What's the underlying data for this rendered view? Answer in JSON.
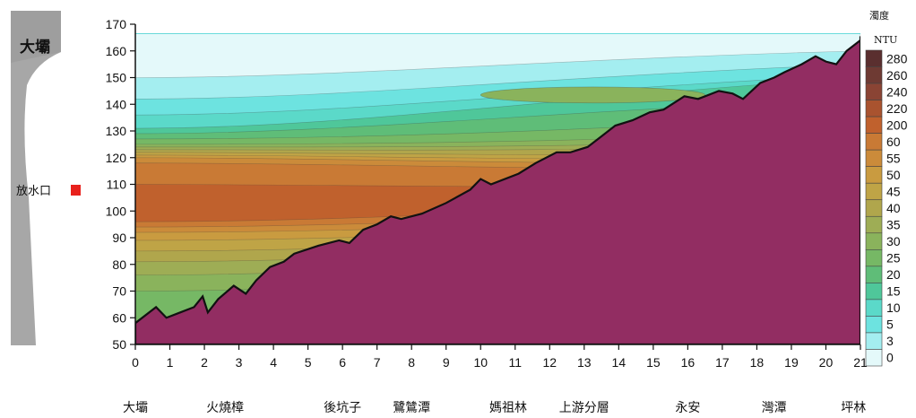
{
  "chart_data": {
    "type": "area",
    "title": "",
    "xlabel": "",
    "ylabel": "",
    "xlim": [
      0,
      21
    ],
    "ylim": [
      50,
      170
    ],
    "x_ticks": [
      "0",
      "1",
      "2",
      "3",
      "4",
      "5",
      "6",
      "7",
      "8",
      "9",
      "10",
      "11",
      "12",
      "13",
      "14",
      "15",
      "16",
      "17",
      "18",
      "19",
      "20",
      "21"
    ],
    "y_ticks": [
      "50",
      "60",
      "70",
      "80",
      "90",
      "100",
      "110",
      "120",
      "130",
      "140",
      "150",
      "160",
      "170"
    ],
    "locations": [
      {
        "name": "大壩",
        "x": 0.0
      },
      {
        "name": "火燒樟",
        "x": 2.6
      },
      {
        "name": "後坑子",
        "x": 6.0
      },
      {
        "name": "鷺鷥潭",
        "x": 8.0
      },
      {
        "name": "媽祖林",
        "x": 10.8
      },
      {
        "name": "上游分層",
        "x": 13.0
      },
      {
        "name": "永安",
        "x": 16.0
      },
      {
        "name": "灣潭",
        "x": 18.5
      },
      {
        "name": "坪林",
        "x": 20.8
      }
    ],
    "riverbed_profile": [
      [
        0,
        58
      ],
      [
        0.6,
        64
      ],
      [
        0.9,
        60
      ],
      [
        1.3,
        62
      ],
      [
        1.7,
        64
      ],
      [
        1.95,
        68
      ],
      [
        2.1,
        62
      ],
      [
        2.4,
        67
      ],
      [
        2.85,
        72
      ],
      [
        3.2,
        69
      ],
      [
        3.5,
        74
      ],
      [
        3.9,
        79
      ],
      [
        4.3,
        81
      ],
      [
        4.6,
        84
      ],
      [
        5.3,
        87
      ],
      [
        5.9,
        89
      ],
      [
        6.2,
        88
      ],
      [
        6.6,
        93
      ],
      [
        7.0,
        95
      ],
      [
        7.4,
        98
      ],
      [
        7.7,
        97
      ],
      [
        8.3,
        99
      ],
      [
        9.0,
        103
      ],
      [
        9.7,
        108
      ],
      [
        10.0,
        112
      ],
      [
        10.3,
        110
      ],
      [
        11.1,
        114
      ],
      [
        11.6,
        118
      ],
      [
        12.2,
        122
      ],
      [
        12.6,
        122
      ],
      [
        13.1,
        124
      ],
      [
        13.5,
        128
      ],
      [
        13.9,
        132
      ],
      [
        14.4,
        134
      ],
      [
        14.9,
        137
      ],
      [
        15.3,
        138
      ],
      [
        15.9,
        143
      ],
      [
        16.3,
        142
      ],
      [
        16.9,
        145
      ],
      [
        17.3,
        144
      ],
      [
        17.6,
        142
      ],
      [
        18.1,
        148
      ],
      [
        18.5,
        150
      ],
      [
        18.8,
        152
      ],
      [
        19.3,
        155
      ],
      [
        19.7,
        158
      ],
      [
        20.0,
        156
      ],
      [
        20.3,
        155
      ],
      [
        20.6,
        160
      ],
      [
        21.0,
        164
      ],
      [
        21.0,
        165.5
      ]
    ],
    "water_surface_elevation": 166.5,
    "turbidity_bands": [
      {
        "from_level": 0,
        "to_level": 3,
        "top_x0": 166.5,
        "top_x21": 166.5
      },
      {
        "from_level": 3,
        "to_level": 5,
        "top_x0": 150,
        "top_x21": 160
      },
      {
        "from_level": 5,
        "to_level": 10,
        "top_x0": 142,
        "top_x21": 155
      },
      {
        "from_level": 10,
        "to_level": 15,
        "top_x0": 136,
        "top_x21": 151
      },
      {
        "from_level": 15,
        "to_level": 20,
        "top_x0": 131,
        "top_x21": 150
      },
      {
        "from_level": 20,
        "to_level": 25,
        "top_x0": 129,
        "top_x21": 142
      },
      {
        "from_level": 25,
        "to_level": 30,
        "top_x0": 127,
        "top_x21": 136
      },
      {
        "from_level": 30,
        "to_level": 35,
        "top_x0": 125,
        "top_x21": 130
      },
      {
        "from_level": 35,
        "to_level": 40,
        "top_x0": 124,
        "top_x21": 127
      },
      {
        "from_level": 40,
        "to_level": 45,
        "top_x0": 123,
        "top_x21": 125
      },
      {
        "from_level": 45,
        "to_level": 50,
        "top_x0": 122,
        "top_x21": 122
      },
      {
        "from_level": 50,
        "to_level": 55,
        "top_x0": 121,
        "top_x21": 120
      },
      {
        "from_level": 55,
        "to_level": 60,
        "top_x0": 120,
        "top_x21": 118
      },
      {
        "from_level": 60,
        "to_level": 200,
        "top_x0": 118,
        "top_x21": 116
      },
      {
        "from_level": 200,
        "to_level": 220,
        "top_x0": 110,
        "top_x21": 110
      },
      {
        "from_level": 60,
        "to_level": 200,
        "top_x0": 96,
        "top_x21": 108
      },
      {
        "from_level": 55,
        "to_level": 60,
        "top_x0": 94,
        "top_x21": 104
      },
      {
        "from_level": 50,
        "to_level": 55,
        "top_x0": 92,
        "top_x21": 101
      },
      {
        "from_level": 45,
        "to_level": 50,
        "top_x0": 89,
        "top_x21": 99
      },
      {
        "from_level": 40,
        "to_level": 45,
        "top_x0": 85,
        "top_x21": 96
      },
      {
        "from_level": 35,
        "to_level": 40,
        "top_x0": 81,
        "top_x21": 93
      },
      {
        "from_level": 30,
        "to_level": 35,
        "top_x0": 76,
        "top_x21": 90
      },
      {
        "from_level": 25,
        "to_level": 30,
        "top_x0": 70,
        "top_x21": 86
      }
    ],
    "plume": {
      "level": 10,
      "x_start": 10,
      "x_end": 16.5,
      "center_y": 143.5,
      "half_height": 3
    },
    "colorbar": {
      "title": "濁度",
      "unit": "NTU",
      "labels": [
        "280",
        "260",
        "240",
        "220",
        "200",
        "60",
        "55",
        "50",
        "45",
        "40",
        "35",
        "30",
        "25",
        "20",
        "15",
        "10",
        "5",
        "3",
        "0"
      ],
      "colors": [
        "#5a2f2f",
        "#6e3a33",
        "#8a4434",
        "#a9532f",
        "#c0612d",
        "#c97a35",
        "#cb8b3a",
        "#c99b40",
        "#bfa446",
        "#b0a64c",
        "#9ead55",
        "#8ab35c",
        "#76b865",
        "#5fbd78",
        "#4fc79a",
        "#5bd9c9",
        "#6de3e0",
        "#a4eef0",
        "#e4f9fa"
      ]
    }
  },
  "dam_schematic": {
    "dam_label": "大壩",
    "outlet_label": "放水口",
    "outlet_color": "#e8211c",
    "dam_color": "#a7a7a7"
  },
  "colors": {
    "bed": "#922d62",
    "cyan_light": "#7ff0f0",
    "cyan_mid": "#68e4da",
    "teal": "#48d3b0",
    "green_dark": "#3cbf8c"
  }
}
